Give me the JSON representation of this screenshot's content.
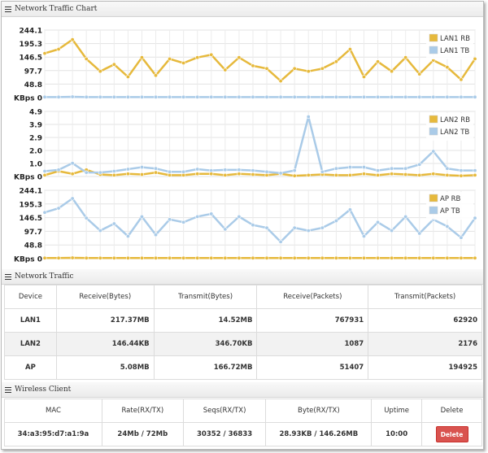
{
  "traffic_chart": {
    "header": "Network Traffic Chart",
    "icon": "list-icon"
  },
  "chart_data": [
    {
      "type": "line",
      "ylabel": "KBps",
      "yticks": [
        "244.1",
        "195.3",
        "146.5",
        "97.7",
        "48.8",
        "0"
      ],
      "ylim": [
        0,
        244.1
      ],
      "legend_position": "top-right",
      "grid": true,
      "x": [
        1,
        2,
        3,
        4,
        5,
        6,
        7,
        8,
        9,
        10,
        11,
        12,
        13,
        14,
        15,
        16,
        17,
        18,
        19,
        20,
        21,
        22,
        23,
        24,
        25,
        26,
        27,
        28,
        29,
        30,
        31,
        32
      ],
      "series": [
        {
          "name": "LAN1 RB",
          "color": "#e6b93c",
          "values": [
            160,
            175,
            210,
            140,
            95,
            120,
            75,
            145,
            80,
            140,
            125,
            145,
            155,
            100,
            145,
            115,
            105,
            60,
            105,
            95,
            105,
            130,
            175,
            75,
            130,
            95,
            145,
            85,
            135,
            110,
            65,
            140
          ]
        },
        {
          "name": "LAN1 TB",
          "color": "#aacbe8",
          "values": [
            2,
            2,
            3,
            2,
            2,
            2,
            2,
            2,
            2,
            2,
            2,
            2,
            2,
            2,
            2,
            2,
            2,
            2,
            2,
            2,
            2,
            2,
            2,
            2,
            2,
            2,
            2,
            2,
            2,
            2,
            2,
            2
          ]
        }
      ]
    },
    {
      "type": "line",
      "ylabel": "KBps",
      "yticks": [
        "4.9",
        "3.9",
        "2.9",
        "2.0",
        "1.0",
        "0"
      ],
      "ylim": [
        0,
        4.9
      ],
      "legend_position": "top-right",
      "grid": true,
      "x": [
        1,
        2,
        3,
        4,
        5,
        6,
        7,
        8,
        9,
        10,
        11,
        12,
        13,
        14,
        15,
        16,
        17,
        18,
        19,
        20,
        21,
        22,
        23,
        24,
        25,
        26,
        27,
        28,
        29,
        30,
        31,
        32
      ],
      "series": [
        {
          "name": "LAN2 RB",
          "color": "#e6b93c",
          "values": [
            0.1,
            0.4,
            0.2,
            0.5,
            0.15,
            0.1,
            0.2,
            0.15,
            0.3,
            0.1,
            0.1,
            0.2,
            0.2,
            0.1,
            0.2,
            0.15,
            0.1,
            0.2,
            0.05,
            0.1,
            0.15,
            0.1,
            0.1,
            0.2,
            0.1,
            0.2,
            0.15,
            0.1,
            0.2,
            0.1,
            0.05,
            0.1
          ]
        },
        {
          "name": "LAN2 TB",
          "color": "#aacbe8",
          "values": [
            0.4,
            0.5,
            1.0,
            0.3,
            0.3,
            0.4,
            0.55,
            0.7,
            0.6,
            0.35,
            0.35,
            0.55,
            0.45,
            0.5,
            0.5,
            0.45,
            0.35,
            0.25,
            0.45,
            4.5,
            0.35,
            0.6,
            0.7,
            0.7,
            0.45,
            0.6,
            0.6,
            0.9,
            1.9,
            0.6,
            0.45,
            0.45
          ]
        }
      ]
    },
    {
      "type": "line",
      "ylabel": "KBps",
      "yticks": [
        "244.1",
        "195.3",
        "146.5",
        "97.7",
        "48.8",
        "0"
      ],
      "ylim": [
        0,
        244.1
      ],
      "legend_position": "top-right",
      "grid": true,
      "x": [
        1,
        2,
        3,
        4,
        5,
        6,
        7,
        8,
        9,
        10,
        11,
        12,
        13,
        14,
        15,
        16,
        17,
        18,
        19,
        20,
        21,
        22,
        23,
        24,
        25,
        26,
        27,
        28,
        29,
        30,
        31,
        32
      ],
      "series": [
        {
          "name": "AP RB",
          "color": "#e6b93c",
          "values": [
            2,
            2,
            3,
            2,
            2,
            2,
            2,
            2,
            2,
            2,
            2,
            2,
            2,
            2,
            2,
            2,
            2,
            2,
            2,
            2,
            2,
            2,
            2,
            2,
            2,
            2,
            2,
            2,
            2,
            2,
            2,
            2
          ]
        },
        {
          "name": "AP TB",
          "color": "#aacbe8",
          "values": [
            165,
            180,
            215,
            145,
            100,
            125,
            80,
            150,
            85,
            140,
            130,
            150,
            160,
            105,
            150,
            120,
            110,
            60,
            110,
            100,
            110,
            135,
            175,
            80,
            130,
            100,
            150,
            90,
            140,
            115,
            75,
            145
          ]
        }
      ]
    }
  ],
  "network_traffic": {
    "header": "Network Traffic",
    "icon": "list-icon",
    "columns": [
      "Device",
      "Receive(Bytes)",
      "Transmit(Bytes)",
      "Receive(Packets)",
      "Transmit(Packets)"
    ],
    "rows": [
      [
        "LAN1",
        "217.37MB",
        "14.52MB",
        "767931",
        "62920"
      ],
      [
        "LAN2",
        "146.44KB",
        "346.70KB",
        "1087",
        "2176"
      ],
      [
        "AP",
        "5.08MB",
        "166.72MB",
        "51407",
        "194925"
      ]
    ]
  },
  "wireless_client": {
    "header": "Wireless Client",
    "icon": "list-icon",
    "columns": [
      "MAC",
      "Rate(RX/TX)",
      "Seqs(RX/TX)",
      "Byte(RX/TX)",
      "Uptime",
      "Delete"
    ],
    "rows": [
      {
        "mac": "34:a3:95:d7:a1:9a",
        "rate": "24Mb / 72Mb",
        "seqs": "30352 / 36833",
        "bytes": "28.93KB / 146.26MB",
        "uptime": "10:00",
        "delete_label": "Delete"
      }
    ]
  }
}
